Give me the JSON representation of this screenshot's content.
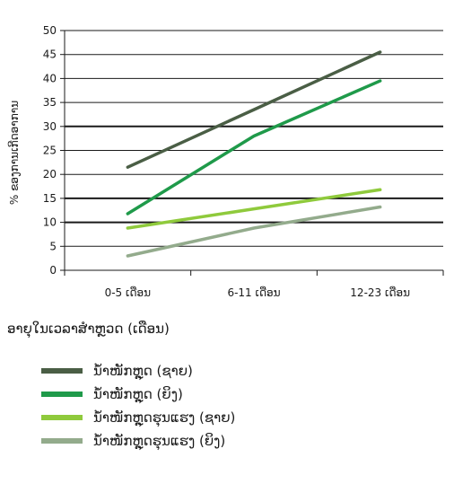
{
  "chart_data": {
    "type": "line",
    "title": "",
    "xlabel": "ອາຍຸໃນເວລາສຳຫຼວດ (ເດືອນ)",
    "ylabel": "% ຂອງການເກີດອາການ",
    "categories": [
      "0-5 ເດືອນ",
      "6-11 ເດືອນ",
      "12-23 ເດືອນ"
    ],
    "ylim": [
      0,
      50
    ],
    "yticks": [
      0,
      5,
      10,
      15,
      20,
      25,
      30,
      35,
      40,
      45,
      50
    ],
    "grid": true,
    "legend_position": "bottom",
    "series": [
      {
        "name": "ນ້ຳໜັກຫຼຸດ (ຊາຍ)",
        "color": "#4a5e45",
        "values": [
          21.5,
          33.5,
          45.5
        ]
      },
      {
        "name": "ນ້ຳໜັກຫຼຸດ (ຍິງ)",
        "color": "#1f9a4a",
        "values": [
          11.8,
          28,
          39.5
        ]
      },
      {
        "name": "ນ້ຳໜັກຫຼຸດຮຸນແຮງ (ຊາຍ)",
        "color": "#8fca3c",
        "values": [
          8.8,
          12.8,
          16.8
        ]
      },
      {
        "name": "ນ້ຳໜັກຫຼຸດຮຸນແຮງ (ຍິງ)",
        "color": "#93ab8c",
        "values": [
          3,
          8.8,
          13.2
        ]
      }
    ]
  }
}
